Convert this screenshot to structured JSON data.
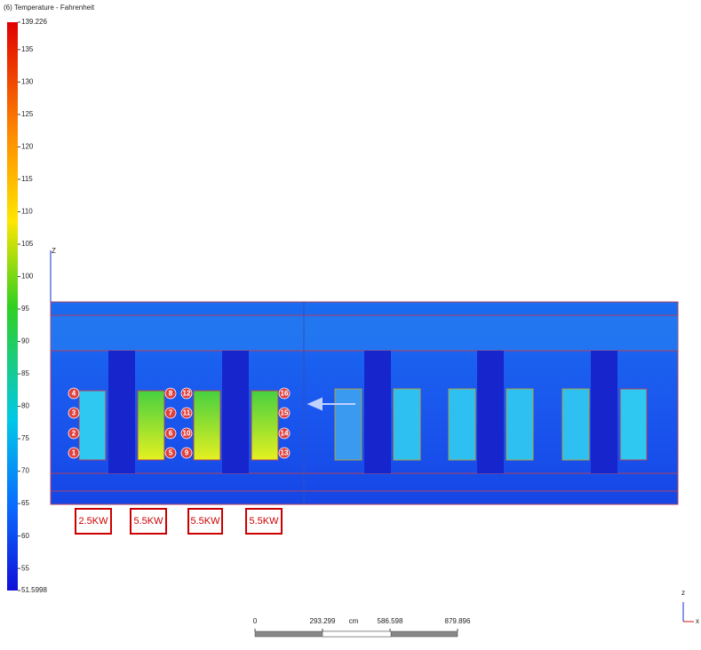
{
  "legend": {
    "title": "(6) Temperature - Fahrenheit",
    "range": [
      51.5998,
      139.226
    ],
    "ticks": [
      135,
      130,
      125,
      120,
      115,
      110,
      105,
      100,
      95,
      90,
      85,
      80,
      75,
      70,
      65,
      60,
      55
    ]
  },
  "scene": {
    "axis_label": "Z",
    "heat_labels": [
      "2.5KW",
      "5.5KW",
      "5.5KW",
      "5.5KW"
    ],
    "markers": [
      "4",
      "3",
      "2",
      "1",
      "8",
      "7",
      "6",
      "5",
      "12",
      "11",
      "10",
      "9",
      "16",
      "15",
      "14",
      "13"
    ]
  },
  "scale_bar": {
    "unit": "cm",
    "ticks": [
      0,
      293.299,
      586.598,
      879.896
    ]
  },
  "triad": {
    "vertical": "z",
    "horizontal": "x"
  }
}
